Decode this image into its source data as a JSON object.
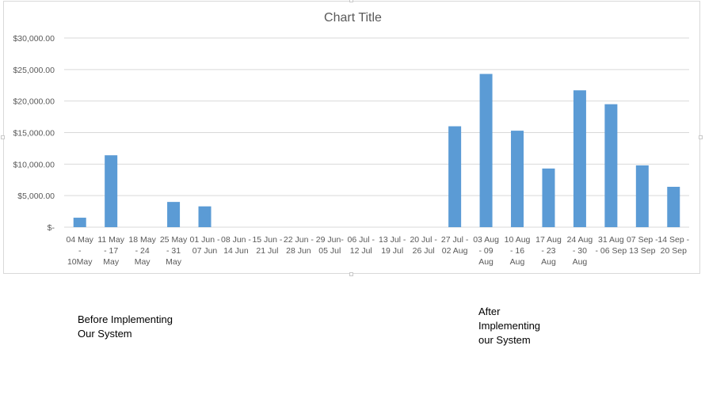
{
  "chart_data": {
    "type": "bar",
    "title": "Chart Title",
    "xlabel": "",
    "ylabel": "",
    "ylim": [
      0,
      30000
    ],
    "yticks": [
      0,
      5000,
      10000,
      15000,
      20000,
      25000,
      30000
    ],
    "ytick_labels": [
      "$-",
      "$5,000.00",
      "$10,000.00",
      "$15,000.00",
      "$20,000.00",
      "$25,000.00",
      "$30,000.00"
    ],
    "grid": true,
    "legend": "none",
    "bar_color": "#5b9bd5",
    "categories": [
      [
        "04 May",
        "-",
        "10May"
      ],
      [
        "11 May",
        "- 17",
        "May"
      ],
      [
        "18 May",
        "- 24",
        "May"
      ],
      [
        "25 May",
        "- 31",
        "May"
      ],
      [
        "01 Jun -",
        "07 Jun"
      ],
      [
        "08 Jun -",
        "14 Jun"
      ],
      [
        "15 Jun -",
        "21 Jul"
      ],
      [
        "22 Jun -",
        "28 Jun"
      ],
      [
        "29 Jun-",
        "05 Jul"
      ],
      [
        "06 Jul -",
        "12 Jul"
      ],
      [
        "13 Jul -",
        "19 Jul"
      ],
      [
        "20 Jul -",
        "26 Jul"
      ],
      [
        "27 Jul -",
        "02 Aug"
      ],
      [
        "03 Aug",
        "- 09",
        "Aug"
      ],
      [
        "10 Aug",
        "- 16",
        "Aug"
      ],
      [
        "17 Aug",
        "- 23",
        "Aug"
      ],
      [
        "24 Aug",
        "- 30",
        "Aug"
      ],
      [
        "31 Aug",
        "- 06 Sep"
      ],
      [
        "07 Sep -",
        "13 Sep"
      ],
      [
        "14 Sep -",
        "20 Sep"
      ]
    ],
    "values": [
      1500,
      11400,
      0,
      4000,
      3300,
      0,
      0,
      0,
      0,
      0,
      0,
      0,
      16000,
      24300,
      15300,
      9300,
      21700,
      19500,
      9800,
      6400
    ]
  },
  "annotations": {
    "before": "Before Implementing\nOur System",
    "after": "After\nImplementing\nour System"
  }
}
